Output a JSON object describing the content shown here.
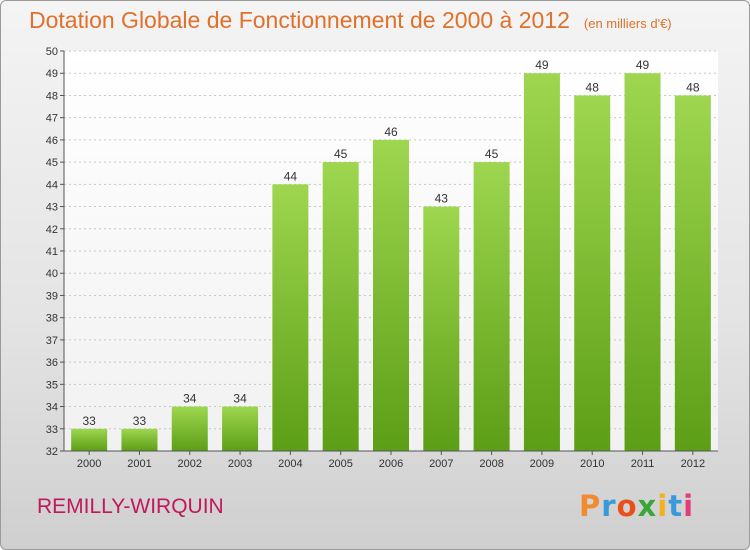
{
  "chart_data": {
    "type": "bar",
    "title": "Dotation Globale de Fonctionnement de 2000 à 2012",
    "subtitle": "(en milliers d'€)",
    "xlabel": "",
    "ylabel": "",
    "categories": [
      "2000",
      "2001",
      "2002",
      "2003",
      "2004",
      "2005",
      "2006",
      "2007",
      "2008",
      "2009",
      "2010",
      "2011",
      "2012"
    ],
    "values": [
      33,
      33,
      34,
      34,
      44,
      45,
      46,
      43,
      45,
      49,
      48,
      49,
      48
    ],
    "ylim": [
      32,
      50
    ],
    "yticks": [
      32,
      33,
      34,
      35,
      36,
      37,
      38,
      39,
      40,
      41,
      42,
      43,
      44,
      45,
      46,
      47,
      48,
      49,
      50
    ],
    "grid": true,
    "legend": "none",
    "colors": {
      "bar_top": "#9ed64f",
      "bar_bottom": "#5c9e16",
      "grid": "#c8c8c8",
      "axis": "#555555"
    }
  },
  "footer": {
    "commune": "REMILLY-WIRQUIN",
    "logo_text": "Proxiti",
    "logo_colors": [
      "#f28a2e",
      "#3a9ad9",
      "#e94e1b",
      "#3aa637",
      "#f2b01e",
      "#3a9ad9",
      "#e63b7a"
    ]
  }
}
